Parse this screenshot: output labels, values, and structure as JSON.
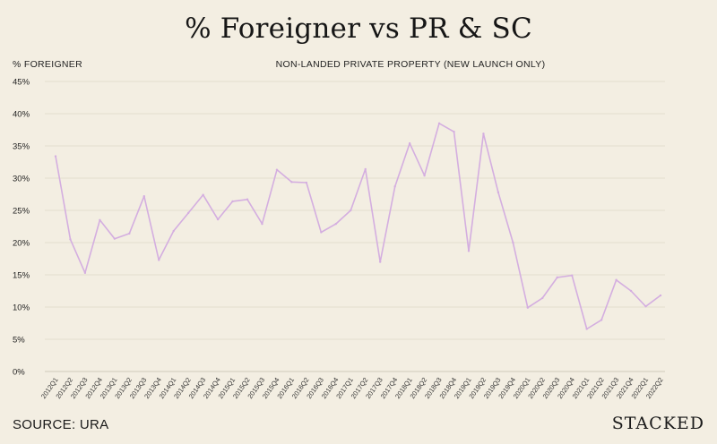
{
  "chart_data": {
    "type": "line",
    "title": "% Foreigner vs PR & SC",
    "subtitle": "NON-LANDED PRIVATE PROPERTY (NEW LAUNCH ONLY)",
    "ylabel": "% FOREIGNER",
    "xlabel": "",
    "ylim": [
      0,
      45
    ],
    "yticks": [
      0,
      5,
      10,
      15,
      20,
      25,
      30,
      35,
      40,
      45
    ],
    "ytick_labels": [
      "0%",
      "5%",
      "10%",
      "15%",
      "20%",
      "25%",
      "30%",
      "35%",
      "40%",
      "45%"
    ],
    "grid": true,
    "line_color": "#d4aee0",
    "categories": [
      "2012Q1",
      "2012Q2",
      "2012Q3",
      "2012Q4",
      "2013Q1",
      "2013Q2",
      "2013Q3",
      "2013Q4",
      "2014Q1",
      "2014Q2",
      "2014Q3",
      "2014Q4",
      "2015Q1",
      "2015Q2",
      "2015Q3",
      "2015Q4",
      "2016Q1",
      "2016Q2",
      "2016Q3",
      "2016Q4",
      "2017Q1",
      "2017Q2",
      "2017Q3",
      "2017Q4",
      "2018Q1",
      "2018Q2",
      "2018Q3",
      "2018Q4",
      "2019Q1",
      "2019Q2",
      "2019Q3",
      "2019Q4",
      "2020Q1",
      "2020Q2",
      "2020Q3",
      "2020Q4",
      "2021Q1",
      "2021Q2",
      "2021Q3",
      "2021Q4",
      "2022Q1",
      "2022Q2"
    ],
    "values": [
      33.4,
      20.5,
      15.3,
      23.5,
      20.6,
      21.4,
      27.2,
      17.3,
      21.8,
      24.6,
      27.4,
      23.6,
      26.4,
      26.7,
      22.9,
      31.3,
      29.4,
      29.3,
      21.6,
      22.9,
      25.0,
      31.4,
      17.0,
      28.7,
      35.4,
      30.4,
      38.5,
      37.2,
      18.7,
      36.9,
      27.8,
      20.0,
      9.9,
      11.4,
      14.6,
      14.9,
      6.6,
      8.0,
      14.2,
      12.5,
      10.1,
      11.8
    ],
    "source": "SOURCE: URA",
    "brand": "STACKED"
  }
}
